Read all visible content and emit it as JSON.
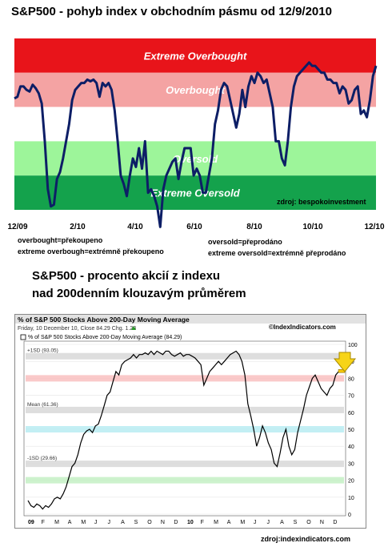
{
  "top_chart": {
    "title": "S&P500 - pohyb index v obchodním pásmu od 12/9/2010",
    "zones": [
      {
        "label": "Extreme Overbought",
        "color": "#e8141a"
      },
      {
        "label": "Overbought",
        "color": "#f4a3a3"
      },
      {
        "label": "",
        "color": "#ffffff"
      },
      {
        "label": "Oversold",
        "color": "#9df59a"
      },
      {
        "label": "Extreme Oversold",
        "color": "#14a24c"
      }
    ],
    "line_color": "#0d1e66",
    "x_ticks": [
      "12/09",
      "2/10",
      "4/10",
      "6/10",
      "8/10",
      "10/10",
      "12/10"
    ],
    "source": "zdroj: bespokoinvestment",
    "legend": {
      "left": [
        "overbought=překoupeno",
        "extreme overbough=extrémně překoupeno"
      ],
      "right": [
        "oversold=přeprodáno",
        "extreme oversold=extrémně přeprodáno"
      ]
    }
  },
  "bottom_chart": {
    "title_lines": [
      "S&P500 - procento akcií z indexu",
      "nad 200denním klouzavým průměrem"
    ],
    "header": "% of S&P 500 Stocks Above 200-Day Moving Average",
    "brand": "©IndexIndicators.com",
    "subheader": "Friday, 10 December 10, Close 84.29  Chg. 1.23",
    "series_label": "% of S&P 500 Stocks Above 200-Day Moving Average (84.29)",
    "bands": [
      {
        "label": "+1SD (93.05)",
        "value": 93.05,
        "color": "#d8d8d8"
      },
      {
        "label": "",
        "value": 80,
        "color": "#f9c0c0"
      },
      {
        "label": "Mean (61.36)",
        "value": 61.36,
        "color": "#d8d8d8"
      },
      {
        "label": "",
        "value": 50,
        "color": "#b8ecf2"
      },
      {
        "label": "-1SD (29.66)",
        "value": 29.66,
        "color": "#d8d8d8"
      },
      {
        "label": "",
        "value": 20,
        "color": "#c4f0c4"
      }
    ],
    "y_ticks": [
      "100",
      "90",
      "80",
      "70",
      "60",
      "50",
      "40",
      "30",
      "20",
      "10",
      "0"
    ],
    "x_ticks": [
      "09",
      "F",
      "M",
      "A",
      "M",
      "J",
      "J",
      "A",
      "S",
      "O",
      "N",
      "D",
      "10",
      "F",
      "M",
      "A",
      "M",
      "J",
      "J",
      "A",
      "S",
      "O",
      "N",
      "D"
    ],
    "source": "zdroj:indexindicators.com"
  },
  "chart_data": [
    {
      "type": "line",
      "title": "S&P500 - pohyb index v obchodním pásmu od 12/9/2010",
      "x_ticks": [
        "12/09",
        "2/10",
        "4/10",
        "6/10",
        "8/10",
        "10/10",
        "12/10"
      ],
      "zones": [
        "Extreme Overbought",
        "Overbought",
        "Oversold",
        "Extreme Oversold"
      ],
      "ylim": [
        0,
        100
      ],
      "series": [
        {
          "values": [
            65,
            66,
            72,
            72,
            70,
            69,
            73,
            71,
            68,
            62,
            40,
            12,
            2,
            3,
            18,
            22,
            30,
            40,
            50,
            64,
            70,
            72,
            74,
            74,
            76,
            75,
            76,
            74,
            66,
            74,
            72,
            74,
            70,
            58,
            40,
            20,
            15,
            8,
            20,
            30,
            25,
            36,
            24,
            40,
            10,
            12,
            8,
            2,
            -10,
            12,
            20,
            24,
            28,
            30,
            18,
            28,
            36,
            36,
            36,
            20,
            24,
            20,
            10,
            10,
            20,
            30,
            50,
            58,
            70,
            74,
            72,
            64,
            56,
            48,
            56,
            70,
            60,
            72,
            78,
            74,
            80,
            78,
            74,
            76,
            68,
            60,
            40,
            40,
            30,
            26,
            40,
            60,
            72,
            78,
            80,
            82,
            84,
            86,
            84,
            84,
            82,
            80,
            80,
            76,
            76,
            74,
            74,
            68,
            72,
            70,
            62,
            64,
            70,
            72,
            56,
            58,
            54,
            64,
            78,
            84
          ]
        }
      ]
    },
    {
      "type": "line",
      "title": "% of S&P 500 Stocks Above 200-Day Moving Average",
      "x_ticks": [
        "09",
        "F",
        "M",
        "A",
        "M",
        "J",
        "J",
        "A",
        "S",
        "O",
        "N",
        "D",
        "10",
        "F",
        "M",
        "A",
        "M",
        "J",
        "J",
        "A",
        "S",
        "O",
        "N",
        "D"
      ],
      "ylim": [
        0,
        100
      ],
      "series": [
        {
          "name": "% of S&P 500 Stocks Above 200-Day Moving Average (84.29)",
          "values": [
            8,
            5,
            4,
            6,
            5,
            3,
            5,
            4,
            6,
            9,
            10,
            9,
            12,
            16,
            22,
            28,
            30,
            35,
            42,
            47,
            49,
            50,
            48,
            52,
            53,
            58,
            64,
            70,
            72,
            78,
            84,
            82,
            88,
            90,
            91,
            92,
            94,
            92,
            94,
            94,
            95,
            94,
            96,
            94,
            96,
            95,
            94,
            96,
            96,
            94,
            93,
            94,
            95,
            93,
            94,
            94,
            93,
            92,
            90,
            88,
            76,
            80,
            84,
            86,
            88,
            90,
            88,
            90,
            92,
            94,
            95,
            96,
            94,
            90,
            82,
            65,
            58,
            50,
            40,
            45,
            52,
            48,
            42,
            38,
            30,
            28,
            36,
            45,
            50,
            40,
            35,
            38,
            48,
            55,
            62,
            70,
            75,
            80,
            82,
            78,
            74,
            72,
            70,
            74,
            76,
            82,
            84,
            84.29
          ]
        }
      ],
      "reference_lines": [
        {
          "label": "+1SD",
          "value": 93.05
        },
        {
          "label": "Mean",
          "value": 61.36
        },
        {
          "label": "-1SD",
          "value": 29.66
        }
      ],
      "close": 84.29,
      "change": 1.23
    }
  ]
}
